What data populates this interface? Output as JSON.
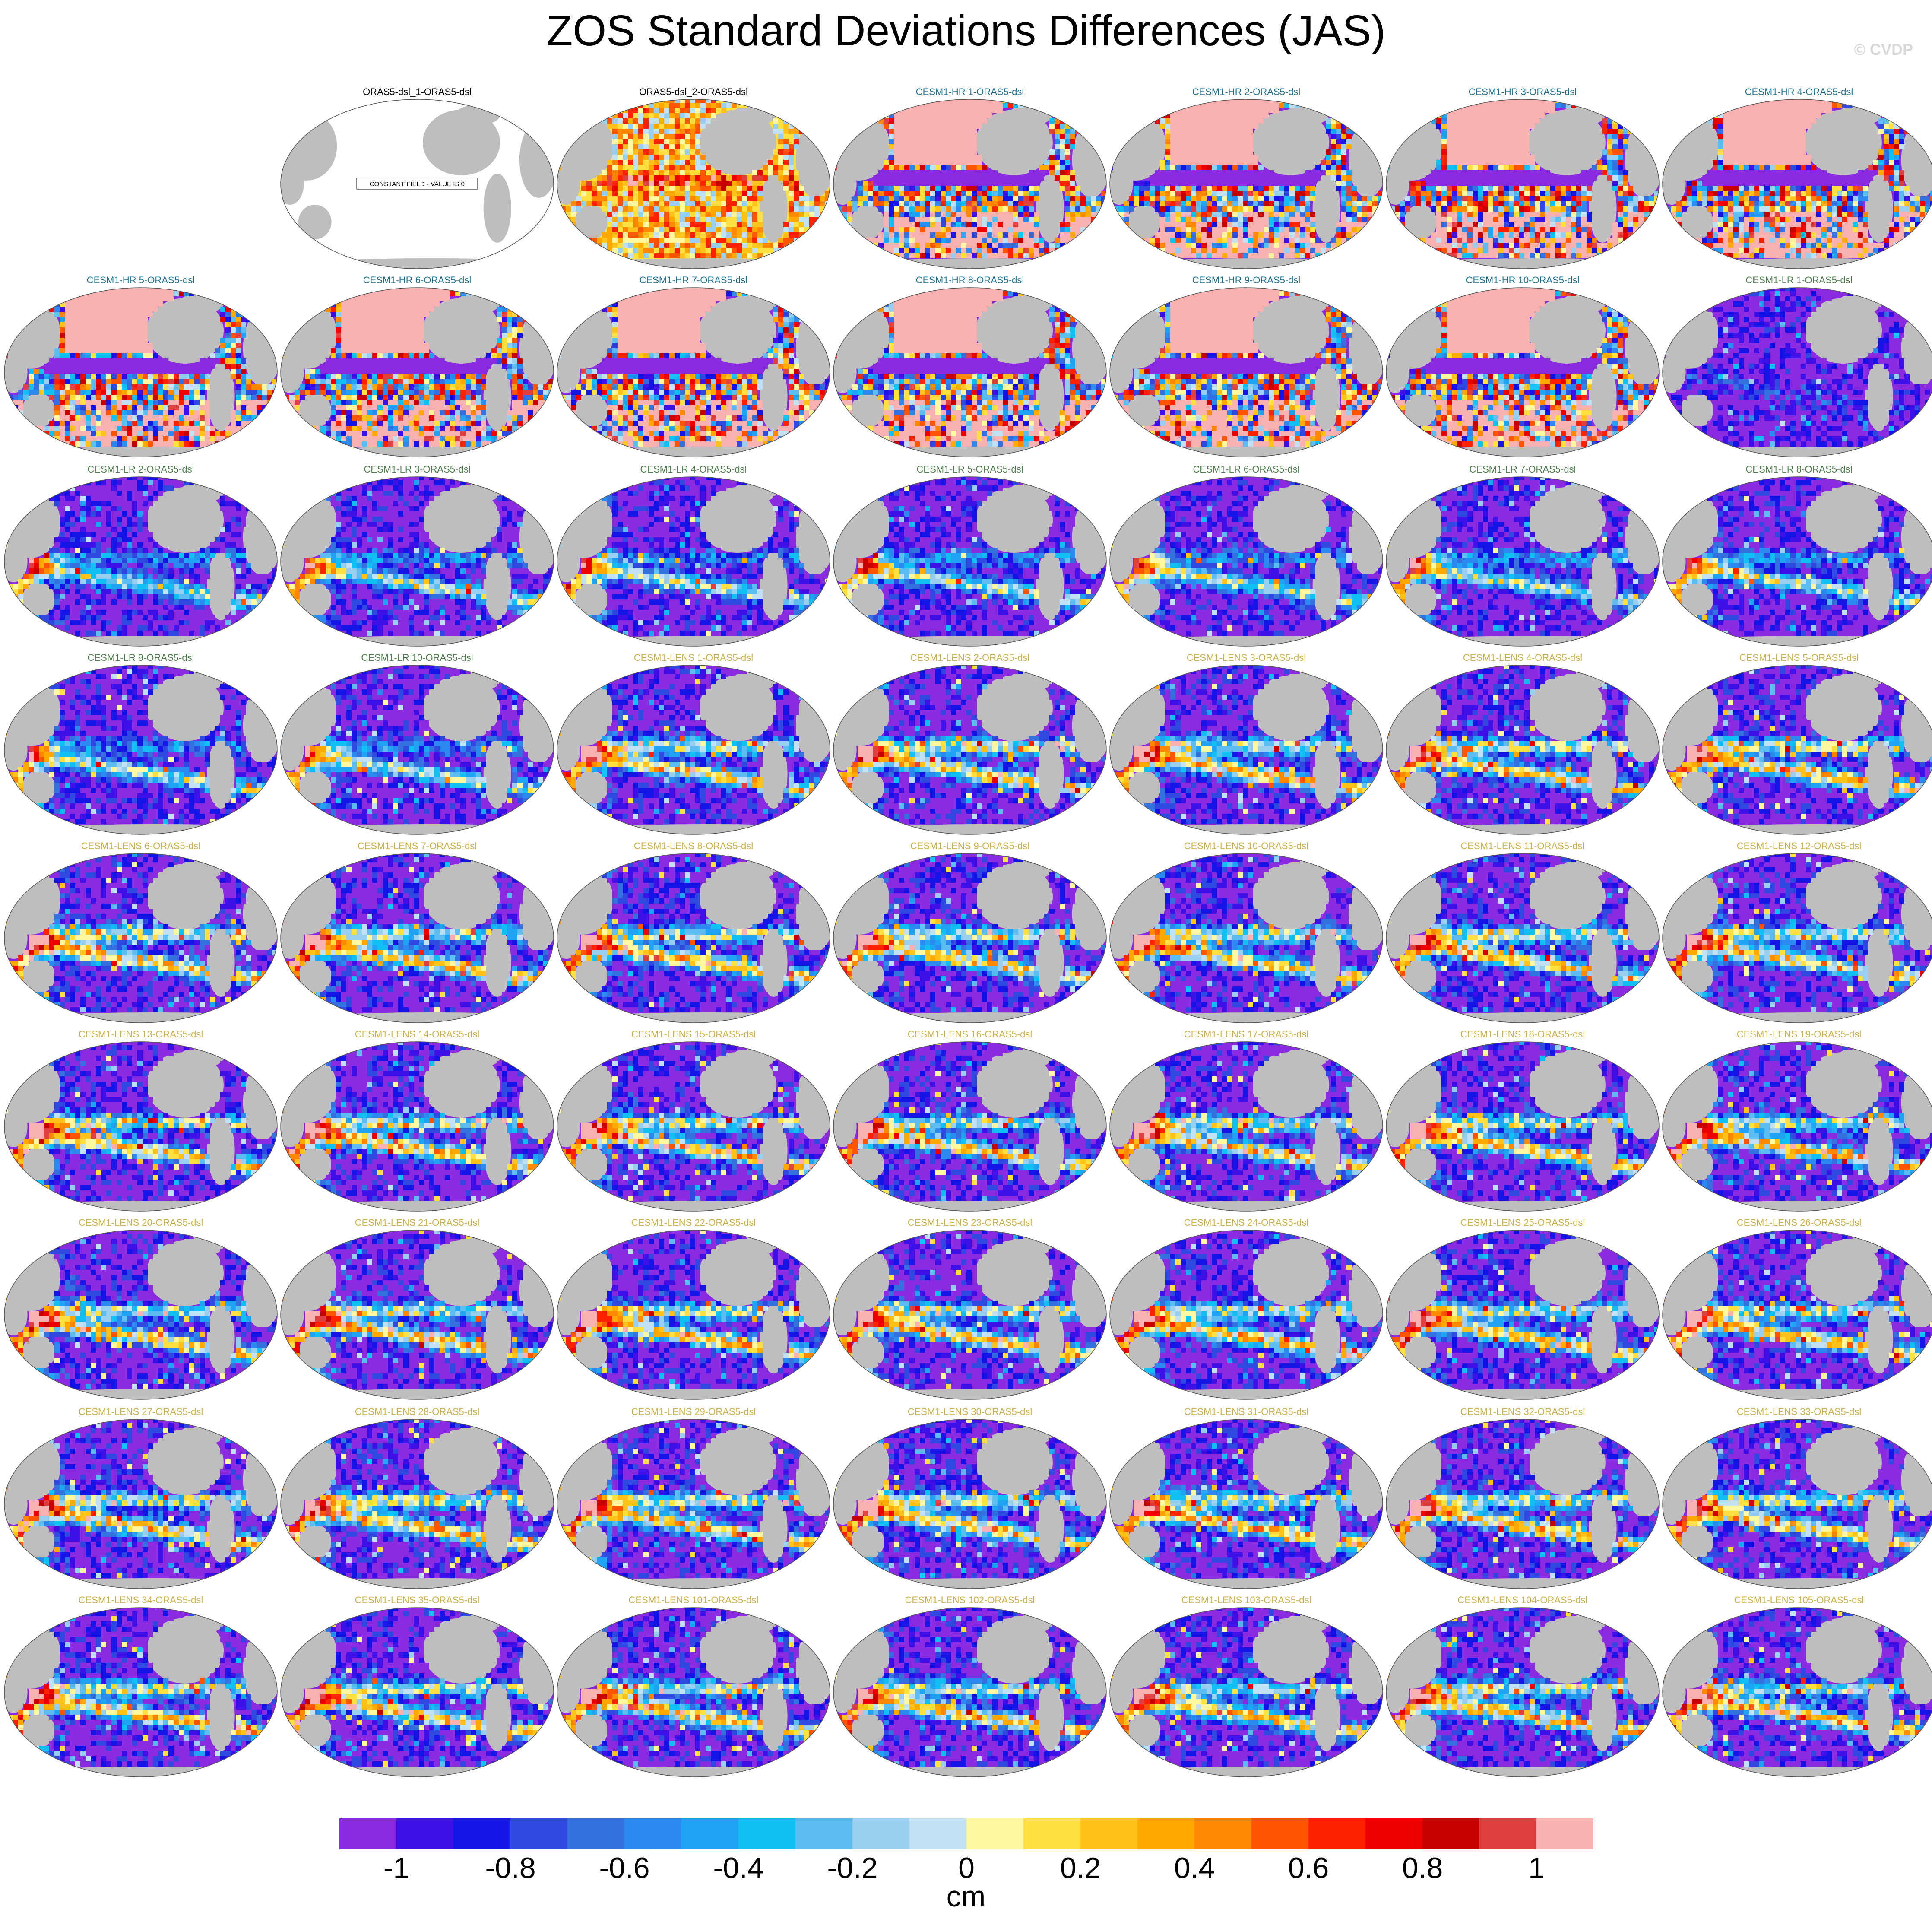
{
  "title": "ZOS Standard Deviations Differences (JAS)",
  "watermark": "© CVDP",
  "colors": {
    "land": "#bebebe",
    "ocean_default": "#8a2be2",
    "title_obs": "#000000",
    "title_hr": "#1f6f8b",
    "title_lr": "#4e7a4e",
    "title_lens": "#c8b04a"
  },
  "chart_data": {
    "type": "heatmap",
    "projection": "global map (Robinson-style)",
    "grid": "7 columns x 9 rows of panels",
    "constant_field_note": "CONSTANT FIELD - VALUE IS 0",
    "colorbar": {
      "label": "cm",
      "tick_labels": [
        "-1",
        "-0.8",
        "-0.6",
        "-0.4",
        "-0.2",
        "0",
        "0.2",
        "0.4",
        "0.6",
        "0.8",
        "1"
      ],
      "levels": [
        -1,
        -0.9,
        -0.8,
        -0.7,
        -0.6,
        -0.5,
        -0.4,
        -0.3,
        -0.2,
        -0.1,
        0,
        0.1,
        0.2,
        0.3,
        0.4,
        0.5,
        0.6,
        0.7,
        0.8,
        0.9,
        1
      ],
      "colors": [
        "#8a2be2",
        "#3d10e8",
        "#1414e6",
        "#2e48e0",
        "#3470e0",
        "#2a8af0",
        "#1ea4f2",
        "#10c0f4",
        "#5cbef0",
        "#98cef0",
        "#c0e0f4",
        "#fff6a0",
        "#ffe040",
        "#ffc21a",
        "#ffa800",
        "#ff8800",
        "#ff5500",
        "#ff2200",
        "#ee0000",
        "#c80000",
        "#e04040",
        "#f8b0b0"
      ]
    },
    "panels": [
      {
        "name": "",
        "group": "empty"
      },
      {
        "name": "ORAS5-dsl_1-ORAS5-dsl",
        "group": "obs",
        "constant": true
      },
      {
        "name": "ORAS5-dsl_2-ORAS5-dsl",
        "group": "obs2"
      },
      {
        "name": "CESM1-HR 1-ORAS5-dsl",
        "group": "hr"
      },
      {
        "name": "CESM1-HR 2-ORAS5-dsl",
        "group": "hr"
      },
      {
        "name": "CESM1-HR 3-ORAS5-dsl",
        "group": "hr"
      },
      {
        "name": "CESM1-HR 4-ORAS5-dsl",
        "group": "hr"
      },
      {
        "name": "CESM1-HR 5-ORAS5-dsl",
        "group": "hr"
      },
      {
        "name": "CESM1-HR 6-ORAS5-dsl",
        "group": "hr"
      },
      {
        "name": "CESM1-HR 7-ORAS5-dsl",
        "group": "hr"
      },
      {
        "name": "CESM1-HR 8-ORAS5-dsl",
        "group": "hr"
      },
      {
        "name": "CESM1-HR 9-ORAS5-dsl",
        "group": "hr"
      },
      {
        "name": "CESM1-HR 10-ORAS5-dsl",
        "group": "hr"
      },
      {
        "name": "CESM1-LR 1-ORAS5-dsl",
        "group": "lr1"
      },
      {
        "name": "CESM1-LR 2-ORAS5-dsl",
        "group": "lr"
      },
      {
        "name": "CESM1-LR 3-ORAS5-dsl",
        "group": "lr"
      },
      {
        "name": "CESM1-LR 4-ORAS5-dsl",
        "group": "lr"
      },
      {
        "name": "CESM1-LR 5-ORAS5-dsl",
        "group": "lr"
      },
      {
        "name": "CESM1-LR 6-ORAS5-dsl",
        "group": "lr"
      },
      {
        "name": "CESM1-LR 7-ORAS5-dsl",
        "group": "lr"
      },
      {
        "name": "CESM1-LR 8-ORAS5-dsl",
        "group": "lr"
      },
      {
        "name": "CESM1-LR 9-ORAS5-dsl",
        "group": "lr"
      },
      {
        "name": "CESM1-LR 10-ORAS5-dsl",
        "group": "lr"
      },
      {
        "name": "CESM1-LENS 1-ORAS5-dsl",
        "group": "lens"
      },
      {
        "name": "CESM1-LENS 2-ORAS5-dsl",
        "group": "lens"
      },
      {
        "name": "CESM1-LENS 3-ORAS5-dsl",
        "group": "lens"
      },
      {
        "name": "CESM1-LENS 4-ORAS5-dsl",
        "group": "lens"
      },
      {
        "name": "CESM1-LENS 5-ORAS5-dsl",
        "group": "lens"
      },
      {
        "name": "CESM1-LENS 6-ORAS5-dsl",
        "group": "lens"
      },
      {
        "name": "CESM1-LENS 7-ORAS5-dsl",
        "group": "lens"
      },
      {
        "name": "CESM1-LENS 8-ORAS5-dsl",
        "group": "lens"
      },
      {
        "name": "CESM1-LENS 9-ORAS5-dsl",
        "group": "lens"
      },
      {
        "name": "CESM1-LENS 10-ORAS5-dsl",
        "group": "lens"
      },
      {
        "name": "CESM1-LENS 11-ORAS5-dsl",
        "group": "lens"
      },
      {
        "name": "CESM1-LENS 12-ORAS5-dsl",
        "group": "lens"
      },
      {
        "name": "CESM1-LENS 13-ORAS5-dsl",
        "group": "lens"
      },
      {
        "name": "CESM1-LENS 14-ORAS5-dsl",
        "group": "lens"
      },
      {
        "name": "CESM1-LENS 15-ORAS5-dsl",
        "group": "lens"
      },
      {
        "name": "CESM1-LENS 16-ORAS5-dsl",
        "group": "lens"
      },
      {
        "name": "CESM1-LENS 17-ORAS5-dsl",
        "group": "lens"
      },
      {
        "name": "CESM1-LENS 18-ORAS5-dsl",
        "group": "lens"
      },
      {
        "name": "CESM1-LENS 19-ORAS5-dsl",
        "group": "lens"
      },
      {
        "name": "CESM1-LENS 20-ORAS5-dsl",
        "group": "lens"
      },
      {
        "name": "CESM1-LENS 21-ORAS5-dsl",
        "group": "lens"
      },
      {
        "name": "CESM1-LENS 22-ORAS5-dsl",
        "group": "lens"
      },
      {
        "name": "CESM1-LENS 23-ORAS5-dsl",
        "group": "lens"
      },
      {
        "name": "CESM1-LENS 24-ORAS5-dsl",
        "group": "lens"
      },
      {
        "name": "CESM1-LENS 25-ORAS5-dsl",
        "group": "lens"
      },
      {
        "name": "CESM1-LENS 26-ORAS5-dsl",
        "group": "lens"
      },
      {
        "name": "CESM1-LENS 27-ORAS5-dsl",
        "group": "lens"
      },
      {
        "name": "CESM1-LENS 28-ORAS5-dsl",
        "group": "lens"
      },
      {
        "name": "CESM1-LENS 29-ORAS5-dsl",
        "group": "lens"
      },
      {
        "name": "CESM1-LENS 30-ORAS5-dsl",
        "group": "lens"
      },
      {
        "name": "CESM1-LENS 31-ORAS5-dsl",
        "group": "lens"
      },
      {
        "name": "CESM1-LENS 32-ORAS5-dsl",
        "group": "lens"
      },
      {
        "name": "CESM1-LENS 33-ORAS5-dsl",
        "group": "lens"
      },
      {
        "name": "CESM1-LENS 34-ORAS5-dsl",
        "group": "lens"
      },
      {
        "name": "CESM1-LENS 35-ORAS5-dsl",
        "group": "lens"
      },
      {
        "name": "CESM1-LENS 101-ORAS5-dsl",
        "group": "lens"
      },
      {
        "name": "CESM1-LENS 102-ORAS5-dsl",
        "group": "lens"
      },
      {
        "name": "CESM1-LENS 103-ORAS5-dsl",
        "group": "lens"
      },
      {
        "name": "CESM1-LENS 104-ORAS5-dsl",
        "group": "lens"
      },
      {
        "name": "CESM1-LENS 105-ORAS5-dsl",
        "group": "lens"
      }
    ]
  }
}
